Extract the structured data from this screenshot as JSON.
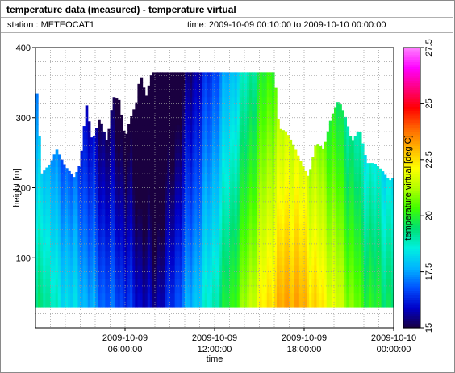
{
  "header": {
    "title": "temperature data (measured) - temperature virtual",
    "station": "station : METEOCAT1",
    "time_range": "time: 2009-10-09 00:10:00 to 2009-10-10 00:00:00"
  },
  "colors": {
    "grid": "#9a9a9a",
    "axis": "#000000",
    "colormap": [
      "#1a0040",
      "#0000c8",
      "#0050ff",
      "#00b4ff",
      "#00f0e0",
      "#00e070",
      "#40ff00",
      "#b4ff00",
      "#ffff00",
      "#ffb400",
      "#ff6400",
      "#ff0000",
      "#ff0080",
      "#ff00ff",
      "#ff80ff"
    ]
  },
  "chart_data": {
    "type": "heatmap",
    "title": "",
    "xlabel": "time",
    "ylabel": "height [m]",
    "colorbar_label": "temperature virtual [deg C]",
    "xlim_hours": [
      0,
      24
    ],
    "ylim": [
      0,
      400
    ],
    "clim": [
      15,
      27.5
    ],
    "x_ticks": [
      {
        "hour": 6,
        "line1": "2009-10-09",
        "line2": "06:00:00"
      },
      {
        "hour": 12,
        "line1": "2009-10-09",
        "line2": "12:00:00"
      },
      {
        "hour": 18,
        "line1": "2009-10-09",
        "line2": "18:00:00"
      },
      {
        "hour": 24,
        "line1": "2009-10-10",
        "line2": "00:00:00"
      }
    ],
    "y_ticks": [
      100,
      200,
      300,
      400
    ],
    "colorbar_ticks": [
      "15",
      "17.5",
      "20",
      "22.5",
      "25",
      "27.5"
    ],
    "bottom_height_m": 30,
    "height_step_m": 10,
    "time_step_minutes": 10,
    "top_height_profile": [
      {
        "hour": 0.0,
        "top_m": 365
      },
      {
        "hour": 0.4,
        "top_m": 220
      },
      {
        "hour": 1.0,
        "top_m": 235
      },
      {
        "hour": 1.4,
        "top_m": 255
      },
      {
        "hour": 2.0,
        "top_m": 230
      },
      {
        "hour": 2.6,
        "top_m": 215
      },
      {
        "hour": 3.0,
        "top_m": 235
      },
      {
        "hour": 3.4,
        "top_m": 320
      },
      {
        "hour": 3.8,
        "top_m": 265
      },
      {
        "hour": 4.3,
        "top_m": 300
      },
      {
        "hour": 4.8,
        "top_m": 265
      },
      {
        "hour": 5.2,
        "top_m": 330
      },
      {
        "hour": 5.6,
        "top_m": 325
      },
      {
        "hour": 6.0,
        "top_m": 270
      },
      {
        "hour": 6.3,
        "top_m": 295
      },
      {
        "hour": 6.8,
        "top_m": 325
      },
      {
        "hour": 7.0,
        "top_m": 365
      },
      {
        "hour": 7.4,
        "top_m": 330
      },
      {
        "hour": 7.8,
        "top_m": 365
      },
      {
        "hour": 16.0,
        "top_m": 365
      },
      {
        "hour": 16.3,
        "top_m": 285
      },
      {
        "hour": 16.8,
        "top_m": 280
      },
      {
        "hour": 17.3,
        "top_m": 260
      },
      {
        "hour": 17.8,
        "top_m": 235
      },
      {
        "hour": 18.3,
        "top_m": 215
      },
      {
        "hour": 18.8,
        "top_m": 265
      },
      {
        "hour": 19.3,
        "top_m": 255
      },
      {
        "hour": 19.8,
        "top_m": 300
      },
      {
        "hour": 20.3,
        "top_m": 325
      },
      {
        "hour": 20.7,
        "top_m": 305
      },
      {
        "hour": 21.2,
        "top_m": 265
      },
      {
        "hour": 21.7,
        "top_m": 285
      },
      {
        "hour": 22.2,
        "top_m": 235
      },
      {
        "hour": 22.7,
        "top_m": 235
      },
      {
        "hour": 23.2,
        "top_m": 225
      },
      {
        "hour": 23.7,
        "top_m": 210
      },
      {
        "hour": 24.0,
        "top_m": 215
      }
    ],
    "temperature_profile": [
      {
        "hour": 0.0,
        "temp_c": 19.0
      },
      {
        "hour": 0.5,
        "temp_c": 19.5
      },
      {
        "hour": 1.5,
        "temp_c": 18.5
      },
      {
        "hour": 3.0,
        "temp_c": 18.0
      },
      {
        "hour": 4.5,
        "temp_c": 17.0
      },
      {
        "hour": 5.5,
        "temp_c": 16.8
      },
      {
        "hour": 6.0,
        "temp_c": 16.5
      },
      {
        "hour": 7.0,
        "temp_c": 16.0
      },
      {
        "hour": 8.0,
        "temp_c": 15.6
      },
      {
        "hour": 9.0,
        "temp_c": 16.3
      },
      {
        "hour": 10.0,
        "temp_c": 17.3
      },
      {
        "hour": 11.0,
        "temp_c": 18.2
      },
      {
        "hour": 12.0,
        "temp_c": 19.0
      },
      {
        "hour": 13.0,
        "temp_c": 20.0
      },
      {
        "hour": 14.0,
        "temp_c": 21.0
      },
      {
        "hour": 15.0,
        "temp_c": 22.0
      },
      {
        "hour": 16.0,
        "temp_c": 22.8
      },
      {
        "hour": 17.0,
        "temp_c": 23.3
      },
      {
        "hour": 18.0,
        "temp_c": 23.0
      },
      {
        "hour": 19.0,
        "temp_c": 22.4
      },
      {
        "hour": 20.0,
        "temp_c": 21.8
      },
      {
        "hour": 21.0,
        "temp_c": 21.0
      },
      {
        "hour": 22.0,
        "temp_c": 20.2
      },
      {
        "hour": 23.0,
        "temp_c": 19.8
      },
      {
        "hour": 24.0,
        "temp_c": 19.5
      }
    ],
    "vertical_gradient_c_per_100m": -0.7,
    "grid": true
  }
}
